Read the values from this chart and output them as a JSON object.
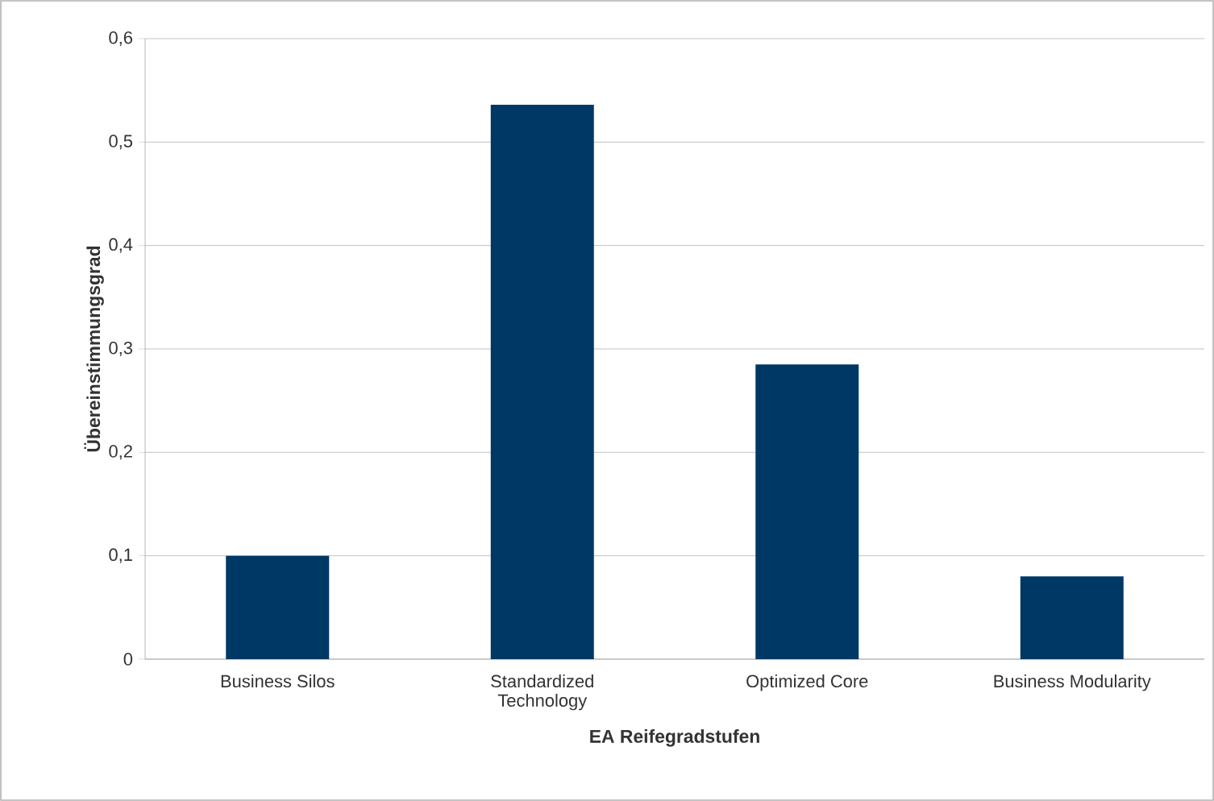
{
  "chart_data": {
    "type": "bar",
    "xlabel": "EA Reifegradstufen",
    "ylabel": "Übereinstimmungsgrad",
    "categories": [
      "Business Silos",
      "Standardized\nTechnology",
      "Optimized Core",
      "Business Modularity"
    ],
    "values": [
      0.1,
      0.536,
      0.285,
      0.08
    ],
    "color": "#003865",
    "ylim": [
      0,
      0.6
    ],
    "yticks": [
      {
        "value": 0,
        "label": "0"
      },
      {
        "value": 0.1,
        "label": "0,1"
      },
      {
        "value": 0.2,
        "label": "0,2"
      },
      {
        "value": 0.3,
        "label": "0,3"
      },
      {
        "value": 0.4,
        "label": "0,4"
      },
      {
        "value": 0.5,
        "label": "0,5"
      },
      {
        "value": 0.6,
        "label": "0,6"
      }
    ],
    "grid": "y"
  }
}
